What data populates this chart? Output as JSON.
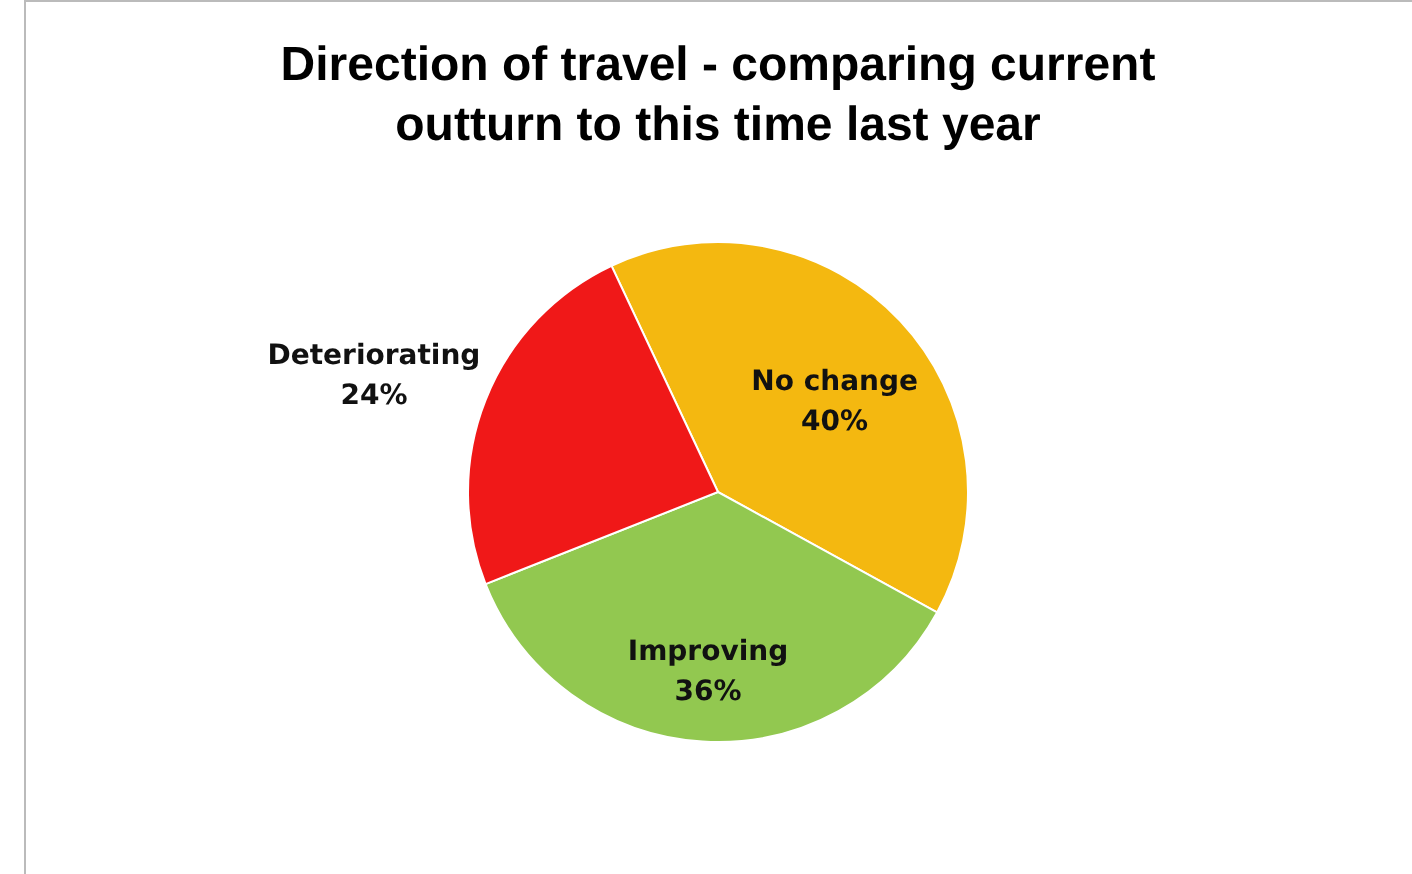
{
  "chart_data": {
    "type": "pie",
    "title": "Direction of travel - comparing current outturn to this time last year",
    "categories": [
      "No change",
      "Improving",
      "Deteriorating"
    ],
    "values": [
      40,
      36,
      24
    ],
    "colors": [
      "#f4b810",
      "#92c850",
      "#f01818"
    ],
    "value_labels": [
      "40%",
      "36%",
      "24%"
    ]
  }
}
